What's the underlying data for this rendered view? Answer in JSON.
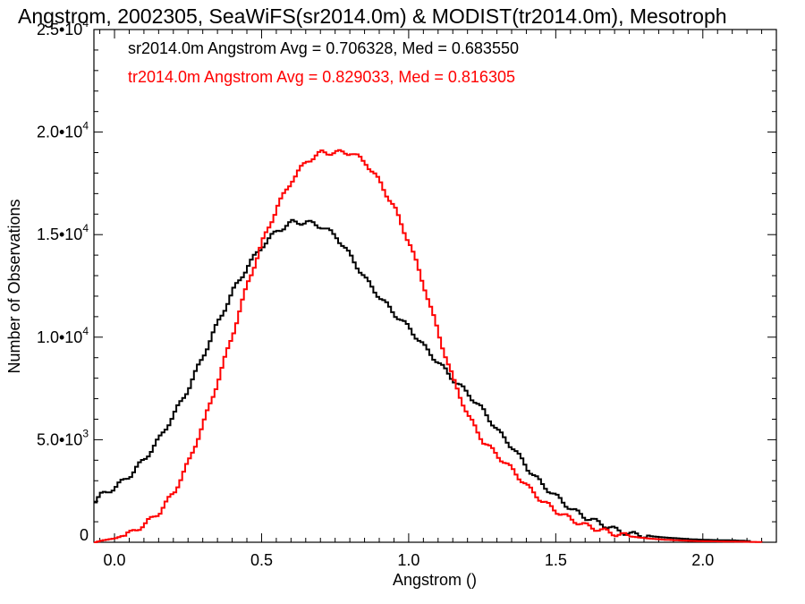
{
  "chart_data": {
    "type": "line",
    "title": "Angstrom, 2002305, SeaWiFS(sr2014.0m) & MODIST(tr2014.0m), Mesotroph",
    "xlabel": "Angstrom ()",
    "ylabel": "Number of Observations",
    "xlim": [
      -0.07,
      2.25
    ],
    "ylim": [
      0,
      25000
    ],
    "x_ticks": [
      {
        "value": 0.0,
        "label": "0.0"
      },
      {
        "value": 0.5,
        "label": "0.5"
      },
      {
        "value": 1.0,
        "label": "1.0"
      },
      {
        "value": 1.5,
        "label": "1.5"
      },
      {
        "value": 2.0,
        "label": "2.0"
      }
    ],
    "y_ticks": [
      {
        "value": 0,
        "mant": "0",
        "exp": ""
      },
      {
        "value": 5000,
        "mant": "5.0•10",
        "exp": "3"
      },
      {
        "value": 10000,
        "mant": "1.0•10",
        "exp": "4"
      },
      {
        "value": 15000,
        "mant": "1.5•10",
        "exp": "4"
      },
      {
        "value": 20000,
        "mant": "2.0•10",
        "exp": "4"
      },
      {
        "value": 25000,
        "mant": "2.5•10",
        "exp": "4"
      }
    ],
    "grid": false,
    "legend_position": "top-left",
    "series": [
      {
        "name": "sr2014.0m Angstrom Avg = 0.706328, Med = 0.683550",
        "color": "#000000",
        "x": [
          -0.07,
          -0.05,
          0.0,
          0.05,
          0.1,
          0.15,
          0.2,
          0.25,
          0.3,
          0.35,
          0.4,
          0.45,
          0.5,
          0.55,
          0.6,
          0.65,
          0.7,
          0.75,
          0.8,
          0.85,
          0.9,
          0.95,
          1.0,
          1.05,
          1.1,
          1.15,
          1.2,
          1.25,
          1.3,
          1.35,
          1.4,
          1.45,
          1.5,
          1.55,
          1.6,
          1.65,
          1.7,
          1.75,
          1.8,
          1.85,
          1.9,
          1.95,
          2.0,
          2.05,
          2.1,
          2.15,
          2.16
        ],
        "y": [
          2000,
          2300,
          2700,
          3300,
          4100,
          5100,
          6300,
          7600,
          9200,
          10800,
          12300,
          13500,
          14500,
          15200,
          15600,
          15600,
          15400,
          14900,
          13900,
          12800,
          11900,
          11100,
          10400,
          9500,
          8700,
          7900,
          7200,
          6400,
          5400,
          4600,
          3600,
          2800,
          2200,
          1600,
          1200,
          900,
          600,
          400,
          320,
          250,
          200,
          150,
          120,
          100,
          90,
          60,
          0
        ]
      },
      {
        "name": "tr2014.0m Angstrom Avg = 0.829033, Med = 0.816305",
        "color": "#ff0000",
        "x": [
          -0.07,
          -0.05,
          0.0,
          0.05,
          0.1,
          0.15,
          0.2,
          0.25,
          0.3,
          0.35,
          0.4,
          0.45,
          0.5,
          0.55,
          0.6,
          0.65,
          0.7,
          0.75,
          0.8,
          0.85,
          0.9,
          0.95,
          1.0,
          1.05,
          1.1,
          1.15,
          1.2,
          1.25,
          1.3,
          1.35,
          1.4,
          1.45,
          1.5,
          1.55,
          1.6,
          1.65,
          1.7,
          1.75,
          1.8,
          1.85,
          1.9,
          1.95,
          2.0,
          2.05,
          2.1,
          2.15,
          2.2
        ],
        "y": [
          0,
          80,
          200,
          450,
          900,
          1500,
          2500,
          4000,
          5900,
          8000,
          10300,
          12700,
          14700,
          16400,
          17700,
          18600,
          19000,
          19000,
          19000,
          18500,
          17500,
          16200,
          14500,
          12400,
          10000,
          7800,
          6100,
          4900,
          4200,
          3500,
          2700,
          2000,
          1500,
          1100,
          800,
          600,
          400,
          280,
          200,
          140,
          100,
          70,
          50,
          40,
          30,
          20,
          10
        ]
      }
    ]
  }
}
